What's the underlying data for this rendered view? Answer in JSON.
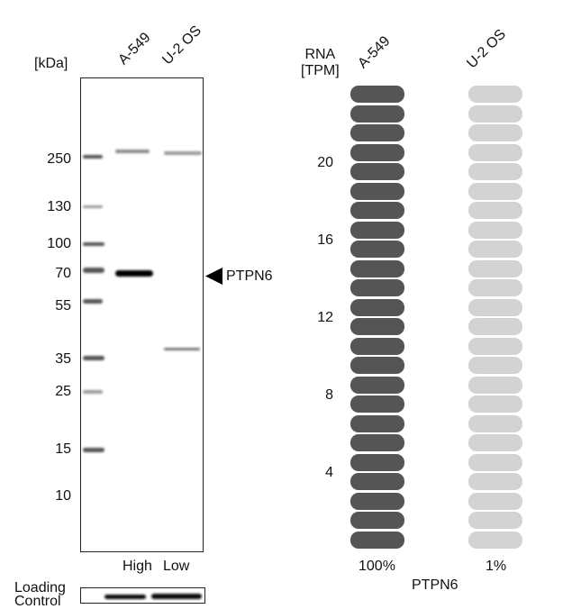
{
  "western_blot": {
    "unit_label": "[kDa]",
    "lanes": [
      "A-549",
      "U-2 OS"
    ],
    "markers": [
      "250",
      "130",
      "100",
      "70",
      "55",
      "35",
      "25",
      "15",
      "10"
    ],
    "target_label": "PTPN6",
    "expression_labels": [
      "High",
      "Low"
    ],
    "loading_control_label": "Loading\nControl"
  },
  "rna": {
    "axis_title": "RNA\n[TPM]",
    "ticks": [
      "20",
      "16",
      "12",
      "8",
      "4"
    ],
    "cell_lines": [
      "A-549",
      "U-2 OS"
    ],
    "percentages": [
      "100%",
      "1%"
    ],
    "gene_label": "PTPN6",
    "bar_count": 24,
    "colors": {
      "high": "#555555",
      "low": "#d3d3d3"
    }
  }
}
